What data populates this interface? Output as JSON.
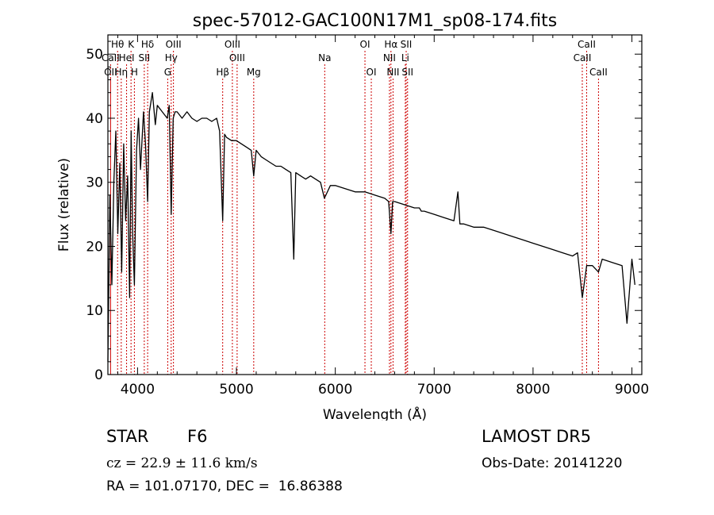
{
  "chart_data": {
    "type": "line",
    "title": "spec-57012-GAC100N17M1_sp08-174.fits",
    "xlabel": "Wavelength (Å)",
    "ylabel": "Flux (relative)",
    "xlim": [
      3700,
      9100
    ],
    "ylim": [
      0,
      53
    ],
    "xticks": [
      4000,
      5000,
      6000,
      7000,
      8000,
      9000
    ],
    "yticks": [
      0,
      10,
      20,
      30,
      40,
      50
    ],
    "grid": false,
    "series": [
      {
        "color": "#000000",
        "x": [
          3700,
          3720,
          3740,
          3760,
          3780,
          3800,
          3820,
          3840,
          3860,
          3880,
          3900,
          3920,
          3935,
          3950,
          3968,
          3990,
          4010,
          4030,
          4060,
          4080,
          4102,
          4120,
          4150,
          4180,
          4200,
          4250,
          4300,
          4320,
          4340,
          4360,
          4380,
          4400,
          4450,
          4500,
          4550,
          4600,
          4650,
          4700,
          4750,
          4800,
          4830,
          4861,
          4880,
          4900,
          4950,
          5000,
          5050,
          5100,
          5150,
          5175,
          5200,
          5250,
          5300,
          5350,
          5400,
          5450,
          5500,
          5550,
          5580,
          5600,
          5650,
          5700,
          5750,
          5800,
          5850,
          5890,
          5950,
          6000,
          6100,
          6200,
          6300,
          6400,
          6500,
          6540,
          6563,
          6580,
          6600,
          6700,
          6800,
          6850,
          6870,
          6900,
          7000,
          7100,
          7200,
          7240,
          7260,
          7300,
          7400,
          7500,
          7600,
          7700,
          7800,
          7900,
          8000,
          8100,
          8200,
          8300,
          8400,
          8450,
          8498,
          8542,
          8600,
          8662,
          8700,
          8800,
          8900,
          8950,
          9000,
          9030
        ],
        "y": [
          2,
          28,
          14,
          30,
          38,
          22,
          33,
          16,
          36,
          24,
          31,
          12,
          38,
          22,
          14,
          35,
          40,
          32,
          41,
          36,
          27,
          41,
          44,
          39,
          42,
          41,
          40,
          42,
          25,
          40,
          41,
          41,
          40,
          41,
          40,
          39.5,
          40,
          40,
          39.5,
          40,
          38,
          24,
          37.5,
          37,
          36.5,
          36.5,
          36,
          35.5,
          35,
          31,
          35,
          34,
          33.5,
          33,
          32.5,
          32.5,
          32,
          31.5,
          18,
          31.5,
          31,
          30.5,
          31,
          30.5,
          30,
          27.5,
          29.5,
          29.5,
          29,
          28.5,
          28.5,
          28,
          27.5,
          27,
          22,
          27,
          27,
          26.5,
          26,
          26,
          25.5,
          25.5,
          25,
          24.5,
          24,
          28.5,
          23.5,
          23.5,
          23,
          23,
          22.5,
          22,
          21.5,
          21,
          20.5,
          20,
          19.5,
          19,
          18.5,
          19,
          12,
          17,
          17,
          16,
          18,
          17.5,
          17,
          8,
          18,
          14
        ]
      }
    ],
    "line_markers": [
      {
        "label": "Hθ",
        "x": 3798,
        "row": 0
      },
      {
        "label": "K",
        "x": 3934,
        "row": 0
      },
      {
        "label": "Hδ",
        "x": 4102,
        "row": 0
      },
      {
        "label": "OIII",
        "x": 4363,
        "row": 0
      },
      {
        "label": "OIII",
        "x": 4959,
        "row": 0
      },
      {
        "label": "OI",
        "x": 6300,
        "row": 0
      },
      {
        "label": "Hα",
        "x": 6563,
        "row": 0
      },
      {
        "label": "SII",
        "x": 6717,
        "row": 0
      },
      {
        "label": "CaII",
        "x": 8542,
        "row": 0
      },
      {
        "label": "CaII",
        "x": 3727,
        "row": 1
      },
      {
        "label": "HeI",
        "x": 3889,
        "row": 1
      },
      {
        "label": "SII",
        "x": 4068,
        "row": 1
      },
      {
        "label": "Hγ",
        "x": 4340,
        "row": 1
      },
      {
        "label": "OIII",
        "x": 5007,
        "row": 1
      },
      {
        "label": "Na",
        "x": 5893,
        "row": 1
      },
      {
        "label": "NII",
        "x": 6548,
        "row": 1
      },
      {
        "label": "Li",
        "x": 6708,
        "row": 1
      },
      {
        "label": "CaII",
        "x": 8498,
        "row": 1
      },
      {
        "label": "OII",
        "x": 3727,
        "row": 2
      },
      {
        "label": "Hη",
        "x": 3835,
        "row": 2
      },
      {
        "label": "H",
        "x": 3968,
        "row": 2
      },
      {
        "label": "G",
        "x": 4305,
        "row": 2
      },
      {
        "label": "Hβ",
        "x": 4861,
        "row": 2
      },
      {
        "label": "Mg",
        "x": 5175,
        "row": 2
      },
      {
        "label": "OI",
        "x": 6364,
        "row": 2
      },
      {
        "label": "NII",
        "x": 6584,
        "row": 2
      },
      {
        "label": "SII",
        "x": 6731,
        "row": 2
      },
      {
        "label": "CaII",
        "x": 8662,
        "row": 2
      }
    ],
    "marker_line_color": "#cc0000"
  },
  "footer": {
    "object_type": "STAR",
    "subclass": "F6",
    "survey": "LAMOST DR5",
    "redshift": "cz = 22.9 ± 11.6 km/s",
    "obs_date": "Obs-Date: 20141220",
    "coords": "RA = 101.07170, DEC =  16.86388"
  }
}
